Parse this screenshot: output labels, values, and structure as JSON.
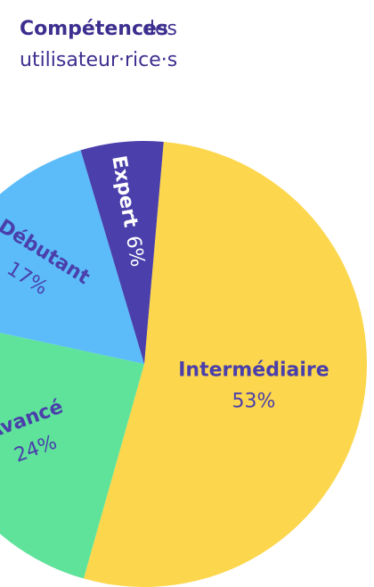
{
  "chart_data": {
    "type": "pie",
    "title_bold": "Compétences",
    "title": "des utilisateur·rice·s",
    "categories": [
      "Intermédiaire",
      "Avancé",
      "Débutant",
      "Expert"
    ],
    "values": [
      53,
      24,
      17,
      6
    ],
    "value_labels": [
      "53%",
      "24%",
      "17%",
      "6%"
    ],
    "colors": [
      "#fcd64c",
      "#5fe39a",
      "#5bbcf9",
      "#4a3fab"
    ]
  }
}
